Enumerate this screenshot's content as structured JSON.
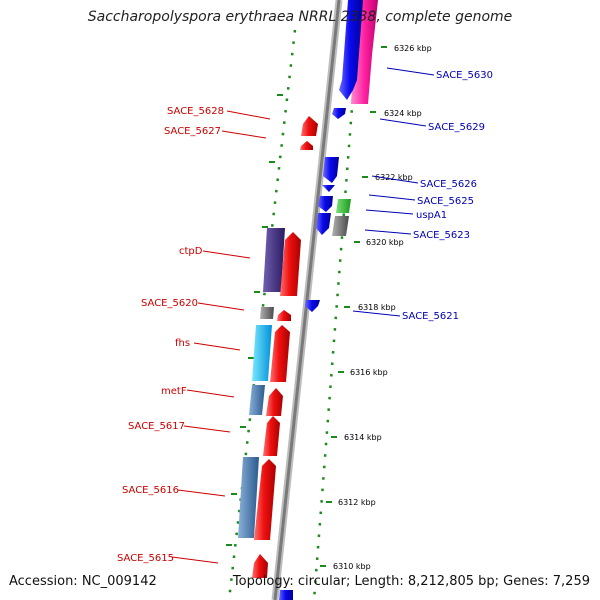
{
  "header": {
    "title": "Saccharopolyspora erythraea NRRL 2338, complete genome"
  },
  "footer": {
    "accession": "Accession: NC_009142",
    "topology": "Topology: circular; Length: 8,212,805 bp; Genes: 7,259"
  },
  "colors": {
    "forward_cds": "#e81010",
    "reverse_cds": "#1010e0",
    "label_left": "#cc0000",
    "label_right": "#0000b4",
    "backbone": "#8a8a8a",
    "tick_marks": "#1a8a1a"
  },
  "ticks": [
    {
      "label": "6326 kbp"
    },
    {
      "label": "6324 kbp"
    },
    {
      "label": "6322 kbp"
    },
    {
      "label": "6320 kbp"
    },
    {
      "label": "6318 kbp"
    },
    {
      "label": "6316 kbp"
    },
    {
      "label": "6314 kbp"
    },
    {
      "label": "6312 kbp"
    },
    {
      "label": "6310 kbp"
    }
  ],
  "labels_left": [
    {
      "text": "SACE_5628"
    },
    {
      "text": "SACE_5627"
    },
    {
      "text": "ctpD"
    },
    {
      "text": "SACE_5620"
    },
    {
      "text": "fhs"
    },
    {
      "text": "metF"
    },
    {
      "text": "SACE_5617"
    },
    {
      "text": "SACE_5616"
    },
    {
      "text": "SACE_5615"
    }
  ],
  "labels_right": [
    {
      "text": "SACE_5630"
    },
    {
      "text": "SACE_5629"
    },
    {
      "text": "SACE_5626"
    },
    {
      "text": "SACE_5625"
    },
    {
      "text": "uspA1"
    },
    {
      "text": "SACE_5623"
    },
    {
      "text": "SACE_5621"
    }
  ]
}
